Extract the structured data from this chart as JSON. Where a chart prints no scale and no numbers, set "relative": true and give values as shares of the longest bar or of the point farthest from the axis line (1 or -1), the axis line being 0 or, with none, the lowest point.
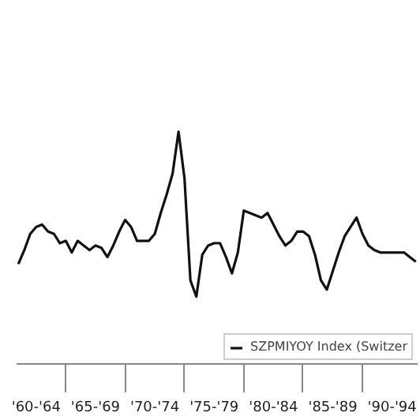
{
  "chart_data": {
    "type": "line",
    "relative": true,
    "legend": "bottom right",
    "grid": false,
    "categories": [
      null,
      null,
      null,
      "'60-'64",
      null,
      null,
      null,
      null,
      null,
      null,
      null,
      null,
      null,
      "'65-'69",
      null,
      null,
      null,
      null,
      null,
      null,
      null,
      null,
      null,
      "'70-'74",
      null,
      null,
      null,
      null,
      null,
      null,
      null,
      null,
      null,
      "'75-'79",
      null,
      null,
      null,
      null,
      null,
      null,
      null,
      null,
      null,
      "'80-'84",
      null,
      null,
      null,
      null,
      null,
      null,
      null,
      null,
      null,
      "'85-'89",
      null,
      null,
      null,
      null,
      null,
      null,
      null,
      null,
      null,
      "'90-'94",
      null,
      null,
      null,
      null
    ],
    "series": [
      {
        "name": "SZPMIYOY Index (Switzer",
        "color": "#111111",
        "values": [
          0.43,
          0.49,
          0.56,
          0.59,
          0.6,
          0.57,
          0.56,
          0.52,
          0.53,
          0.48,
          0.53,
          0.51,
          0.49,
          0.51,
          0.5,
          0.46,
          0.51,
          0.57,
          0.62,
          0.59,
          0.53,
          0.53,
          0.53,
          0.56,
          0.65,
          0.73,
          0.82,
          1,
          0.8,
          0.36,
          0.29,
          0.47,
          0.51,
          0.52,
          0.52,
          0.46,
          0.39,
          0.48,
          0.66,
          0.65,
          0.64,
          0.63,
          0.65,
          0.6,
          0.55,
          0.51,
          0.53,
          0.57,
          0.57,
          0.55,
          0.47,
          0.36,
          0.32,
          0.4,
          0.48,
          0.55,
          0.59,
          0.63,
          0.56,
          0.51,
          0.49,
          0.48,
          0.48,
          0.48,
          0.48,
          0.48,
          0.46,
          0.44
        ]
      }
    ]
  }
}
